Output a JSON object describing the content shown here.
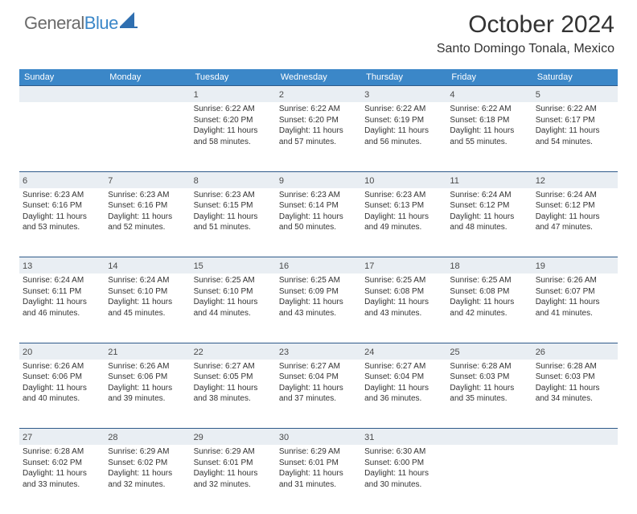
{
  "brand": {
    "part1": "General",
    "part2": "Blue"
  },
  "title": "October 2024",
  "location": "Santo Domingo Tonala, Mexico",
  "colors": {
    "header_bg": "#3b87c8",
    "header_text": "#ffffff",
    "numstrip_bg": "#e9eef3",
    "rule": "#2f5a8a",
    "body_text": "#333333"
  },
  "day_names": [
    "Sunday",
    "Monday",
    "Tuesday",
    "Wednesday",
    "Thursday",
    "Friday",
    "Saturday"
  ],
  "first_weekday_index": 2,
  "days_in_month": 31,
  "days": {
    "1": {
      "sunrise": "6:22 AM",
      "sunset": "6:20 PM",
      "daylight": "11 hours and 58 minutes."
    },
    "2": {
      "sunrise": "6:22 AM",
      "sunset": "6:20 PM",
      "daylight": "11 hours and 57 minutes."
    },
    "3": {
      "sunrise": "6:22 AM",
      "sunset": "6:19 PM",
      "daylight": "11 hours and 56 minutes."
    },
    "4": {
      "sunrise": "6:22 AM",
      "sunset": "6:18 PM",
      "daylight": "11 hours and 55 minutes."
    },
    "5": {
      "sunrise": "6:22 AM",
      "sunset": "6:17 PM",
      "daylight": "11 hours and 54 minutes."
    },
    "6": {
      "sunrise": "6:23 AM",
      "sunset": "6:16 PM",
      "daylight": "11 hours and 53 minutes."
    },
    "7": {
      "sunrise": "6:23 AM",
      "sunset": "6:16 PM",
      "daylight": "11 hours and 52 minutes."
    },
    "8": {
      "sunrise": "6:23 AM",
      "sunset": "6:15 PM",
      "daylight": "11 hours and 51 minutes."
    },
    "9": {
      "sunrise": "6:23 AM",
      "sunset": "6:14 PM",
      "daylight": "11 hours and 50 minutes."
    },
    "10": {
      "sunrise": "6:23 AM",
      "sunset": "6:13 PM",
      "daylight": "11 hours and 49 minutes."
    },
    "11": {
      "sunrise": "6:24 AM",
      "sunset": "6:12 PM",
      "daylight": "11 hours and 48 minutes."
    },
    "12": {
      "sunrise": "6:24 AM",
      "sunset": "6:12 PM",
      "daylight": "11 hours and 47 minutes."
    },
    "13": {
      "sunrise": "6:24 AM",
      "sunset": "6:11 PM",
      "daylight": "11 hours and 46 minutes."
    },
    "14": {
      "sunrise": "6:24 AM",
      "sunset": "6:10 PM",
      "daylight": "11 hours and 45 minutes."
    },
    "15": {
      "sunrise": "6:25 AM",
      "sunset": "6:10 PM",
      "daylight": "11 hours and 44 minutes."
    },
    "16": {
      "sunrise": "6:25 AM",
      "sunset": "6:09 PM",
      "daylight": "11 hours and 43 minutes."
    },
    "17": {
      "sunrise": "6:25 AM",
      "sunset": "6:08 PM",
      "daylight": "11 hours and 43 minutes."
    },
    "18": {
      "sunrise": "6:25 AM",
      "sunset": "6:08 PM",
      "daylight": "11 hours and 42 minutes."
    },
    "19": {
      "sunrise": "6:26 AM",
      "sunset": "6:07 PM",
      "daylight": "11 hours and 41 minutes."
    },
    "20": {
      "sunrise": "6:26 AM",
      "sunset": "6:06 PM",
      "daylight": "11 hours and 40 minutes."
    },
    "21": {
      "sunrise": "6:26 AM",
      "sunset": "6:06 PM",
      "daylight": "11 hours and 39 minutes."
    },
    "22": {
      "sunrise": "6:27 AM",
      "sunset": "6:05 PM",
      "daylight": "11 hours and 38 minutes."
    },
    "23": {
      "sunrise": "6:27 AM",
      "sunset": "6:04 PM",
      "daylight": "11 hours and 37 minutes."
    },
    "24": {
      "sunrise": "6:27 AM",
      "sunset": "6:04 PM",
      "daylight": "11 hours and 36 minutes."
    },
    "25": {
      "sunrise": "6:28 AM",
      "sunset": "6:03 PM",
      "daylight": "11 hours and 35 minutes."
    },
    "26": {
      "sunrise": "6:28 AM",
      "sunset": "6:03 PM",
      "daylight": "11 hours and 34 minutes."
    },
    "27": {
      "sunrise": "6:28 AM",
      "sunset": "6:02 PM",
      "daylight": "11 hours and 33 minutes."
    },
    "28": {
      "sunrise": "6:29 AM",
      "sunset": "6:02 PM",
      "daylight": "11 hours and 32 minutes."
    },
    "29": {
      "sunrise": "6:29 AM",
      "sunset": "6:01 PM",
      "daylight": "11 hours and 32 minutes."
    },
    "30": {
      "sunrise": "6:29 AM",
      "sunset": "6:01 PM",
      "daylight": "11 hours and 31 minutes."
    },
    "31": {
      "sunrise": "6:30 AM",
      "sunset": "6:00 PM",
      "daylight": "11 hours and 30 minutes."
    }
  },
  "labels": {
    "sunrise": "Sunrise: ",
    "sunset": "Sunset: ",
    "daylight": "Daylight: "
  }
}
